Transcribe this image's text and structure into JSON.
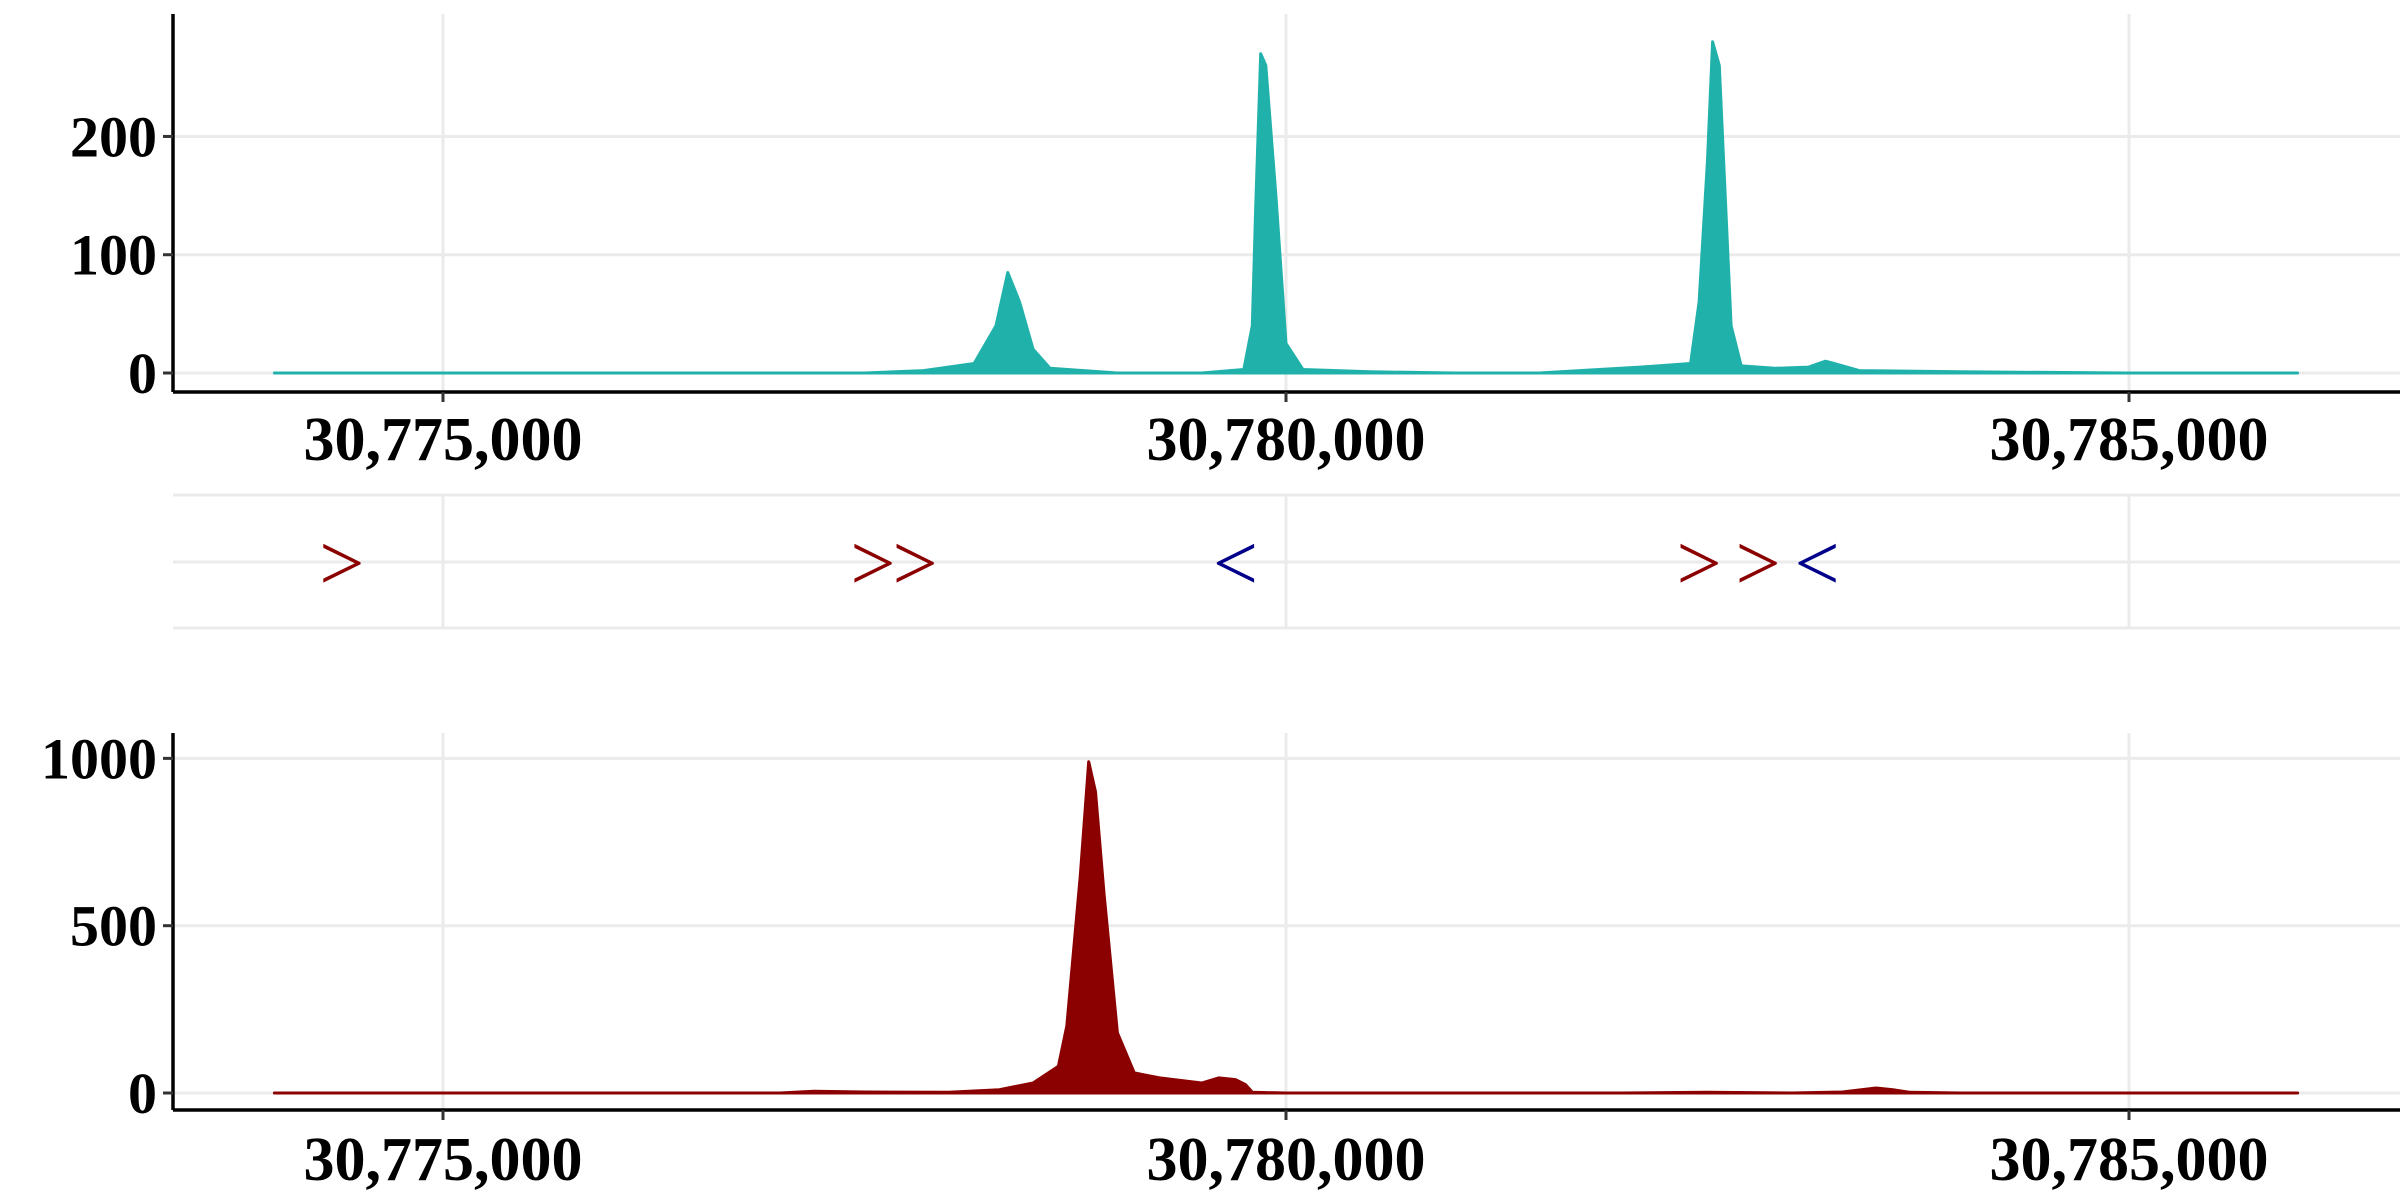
{
  "colors": {
    "top_track": "#20B2AA",
    "bottom_track": "#8B0000",
    "forward_arrow": "#8B0000",
    "reverse_arrow": "#00008B",
    "grid": "#EBEBEB",
    "axis": "#000000"
  },
  "chart_data": [
    {
      "type": "area",
      "panel": "top",
      "x_range": [
        30773400,
        30786250
      ],
      "ylim": [
        0,
        290
      ],
      "x_ticks": [
        30775000,
        30780000,
        30785000
      ],
      "x_tick_labels": [
        "30,775,000",
        "30,780,000",
        "30,785,000"
      ],
      "y_ticks": [
        0,
        100,
        200
      ],
      "y_tick_labels": [
        "0",
        "100",
        "200"
      ],
      "series": [
        {
          "color": "#20B2AA",
          "x": [
            30774000,
            30776000,
            30777500,
            30777850,
            30778150,
            30778280,
            30778350,
            30778420,
            30778500,
            30778600,
            30778800,
            30779000,
            30779500,
            30779750,
            30779800,
            30779820,
            30779850,
            30779880,
            30779940,
            30780000,
            30780100,
            30780500,
            30781000,
            30781500,
            30782100,
            30782400,
            30782450,
            30782500,
            30782530,
            30782570,
            30782640,
            30782700,
            30782900,
            30783100,
            30783200,
            30783250,
            30783400,
            30784000,
            30785000,
            30786000
          ],
          "y": [
            0,
            0,
            0,
            2,
            8,
            40,
            85,
            60,
            20,
            4,
            2,
            0,
            0,
            3,
            40,
            140,
            270,
            260,
            150,
            25,
            3,
            1,
            0,
            0,
            5,
            8,
            60,
            180,
            280,
            260,
            40,
            6,
            4,
            5,
            10,
            8,
            2,
            1,
            0,
            0
          ]
        }
      ],
      "annotations": [
        {
          "x": 30774400,
          "symbol": ">",
          "strand": "forward"
        },
        {
          "x": 30777550,
          "symbol": ">",
          "strand": "forward"
        },
        {
          "x": 30777800,
          "symbol": ">",
          "strand": "forward"
        },
        {
          "x": 30779700,
          "symbol": "<",
          "strand": "reverse"
        },
        {
          "x": 30782450,
          "symbol": ">",
          "strand": "forward"
        },
        {
          "x": 30782800,
          "symbol": ">",
          "strand": "forward"
        },
        {
          "x": 30783150,
          "symbol": "<",
          "strand": "reverse"
        }
      ]
    },
    {
      "type": "area",
      "panel": "bottom",
      "x_range": [
        30773400,
        30786250
      ],
      "ylim": [
        0,
        1040
      ],
      "x_ticks": [
        30775000,
        30780000,
        30785000
      ],
      "x_tick_labels": [
        "30,775,000",
        "30,780,000",
        "30,785,000"
      ],
      "y_ticks": [
        0,
        500,
        1000
      ],
      "y_tick_labels": [
        "0",
        "500",
        "1000"
      ],
      "series": [
        {
          "color": "#8B0000",
          "x": [
            30774000,
            30776000,
            30777000,
            30777200,
            30777500,
            30778000,
            30778300,
            30778500,
            30778650,
            30778700,
            30778780,
            30778830,
            30778870,
            30778920,
            30779000,
            30779100,
            30779150,
            30779250,
            30779500,
            30779600,
            30779700,
            30779760,
            30779800,
            30780000,
            30781000,
            30782000,
            30782500,
            30783000,
            30783300,
            30783500,
            30783600,
            30783700,
            30784000,
            30785000,
            30786000
          ],
          "y": [
            0,
            0,
            0,
            5,
            3,
            2,
            10,
            30,
            80,
            200,
            650,
            990,
            900,
            600,
            180,
            60,
            55,
            45,
            30,
            45,
            40,
            25,
            2,
            0,
            0,
            0,
            2,
            0,
            3,
            15,
            10,
            2,
            0,
            0,
            0
          ]
        }
      ]
    }
  ]
}
